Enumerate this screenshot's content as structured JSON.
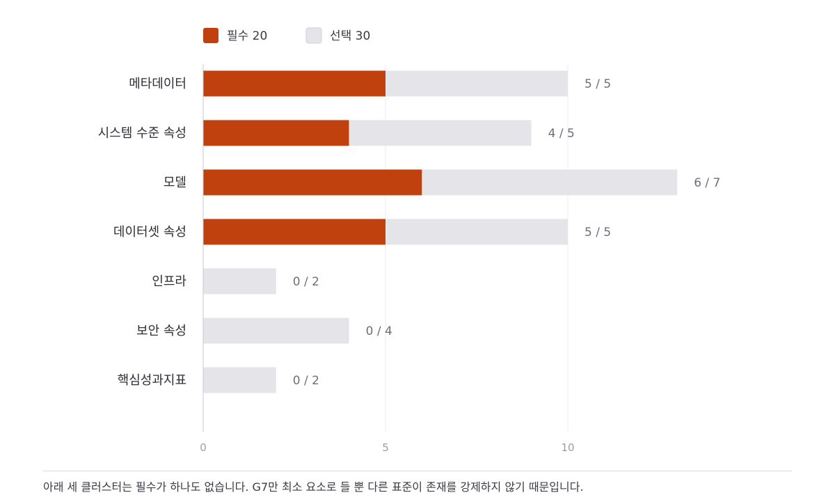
{
  "chart_data": {
    "type": "bar",
    "orientation": "horizontal",
    "stacked": true,
    "categories": [
      "메타데이터",
      "시스템 수준 속성",
      "모델",
      "데이터셋 속성",
      "인프라",
      "보안 속성",
      "핵심성과지표"
    ],
    "series": [
      {
        "name": "필수",
        "values": [
          5,
          4,
          6,
          5,
          0,
          0,
          0
        ],
        "color": "#c1410e"
      },
      {
        "name": "선택",
        "values": [
          5,
          5,
          7,
          5,
          2,
          4,
          2
        ],
        "color": "#e5e5e9"
      }
    ],
    "legend": [
      {
        "label": "필수 20",
        "color": "#c1410e"
      },
      {
        "label": "선택 30",
        "color": "#e5e5e9"
      }
    ],
    "value_labels": [
      "5 / 5",
      "4 / 5",
      "6 / 7",
      "5 / 5",
      "0 / 2",
      "0 / 4",
      "0 / 2"
    ],
    "xlim": [
      0,
      15
    ],
    "x_ticks": [
      "0",
      "5",
      "10"
    ],
    "grid": true,
    "legend_position": "top-left"
  },
  "footnote": "아래 세 클러스터는 필수가 하나도 없습니다. G7만 최소 요소로 들 뿐 다른 표준이 존재를 강제하지 않기 때문입니다."
}
